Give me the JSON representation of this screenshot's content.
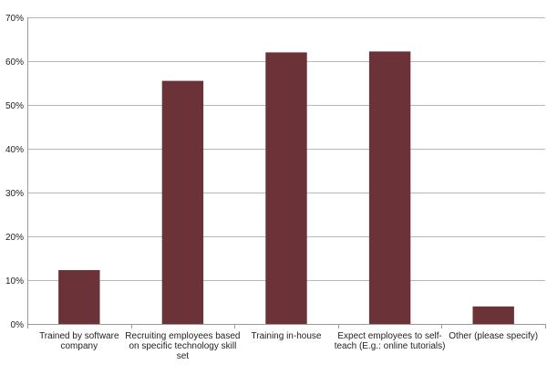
{
  "chart_data": {
    "type": "bar",
    "title": "",
    "xlabel": "",
    "ylabel": "",
    "categories": [
      [
        "Trained by software",
        "company"
      ],
      [
        "Recruiting employees based",
        "on specific technology skill",
        "set"
      ],
      [
        "Training in-house"
      ],
      [
        "Expect employees to self-",
        "teach (E.g.: online tutorials)"
      ],
      [
        "Other (please specify)"
      ]
    ],
    "values": [
      12.3,
      55.5,
      62.0,
      62.2,
      4.0
    ],
    "ylim": [
      0,
      70
    ],
    "yticks": [
      0,
      10,
      20,
      30,
      40,
      50,
      60,
      70
    ],
    "ytick_format": "percent",
    "grid": true,
    "legend": "none",
    "bar_color": "#6b3337"
  }
}
